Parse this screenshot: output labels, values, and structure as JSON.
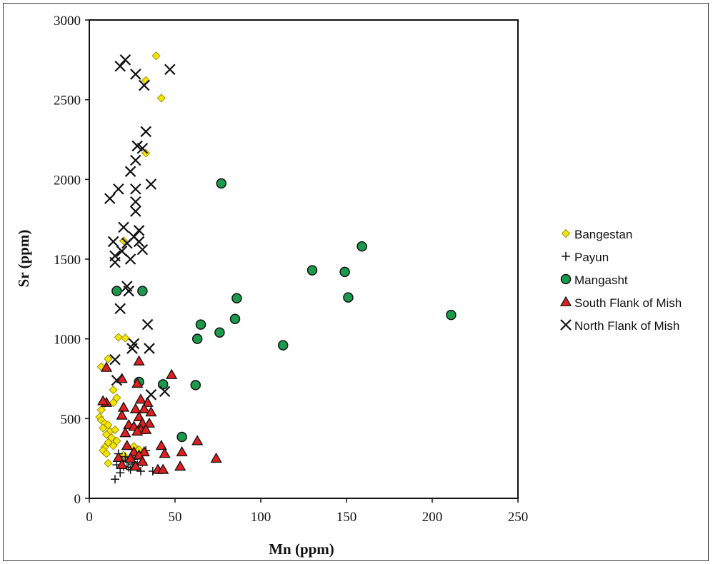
{
  "chart_data": {
    "type": "scatter",
    "xlabel": "Mn (ppm)",
    "ylabel": "Sr (ppm)",
    "xlim": [
      0,
      250
    ],
    "ylim": [
      0,
      3000
    ],
    "xticks": [
      "0",
      "50",
      "100",
      "150",
      "200",
      "250"
    ],
    "yticks": [
      "0",
      "500",
      "1000",
      "1500",
      "2000",
      "2500",
      "3000"
    ],
    "grid": false,
    "legend_position": "right",
    "series": [
      {
        "name": "Bangestan",
        "marker": "diamond",
        "color": "#f2e600",
        "points": [
          [
            39,
            2775
          ],
          [
            33,
            2620
          ],
          [
            42,
            2510
          ],
          [
            33,
            2165
          ],
          [
            20,
            1615
          ],
          [
            17,
            1010
          ],
          [
            21,
            1005
          ],
          [
            11,
            875
          ],
          [
            7,
            825
          ],
          [
            14,
            680
          ],
          [
            16,
            630
          ],
          [
            14,
            600
          ],
          [
            9,
            595
          ],
          [
            7,
            555
          ],
          [
            6,
            510
          ],
          [
            7,
            490
          ],
          [
            9,
            470
          ],
          [
            11,
            460
          ],
          [
            8,
            440
          ],
          [
            12,
            420
          ],
          [
            15,
            430
          ],
          [
            10,
            400
          ],
          [
            13,
            380
          ],
          [
            16,
            360
          ],
          [
            11,
            350
          ],
          [
            14,
            330
          ],
          [
            9,
            320
          ],
          [
            8,
            300
          ],
          [
            10,
            280
          ],
          [
            20,
            270
          ],
          [
            26,
            325
          ],
          [
            29,
            305
          ],
          [
            32,
            290
          ],
          [
            11,
            220
          ]
        ]
      },
      {
        "name": "Payun",
        "marker": "plus",
        "color": "#111111",
        "points": [
          [
            15,
            120
          ],
          [
            18,
            160
          ],
          [
            20,
            200
          ],
          [
            22,
            230
          ],
          [
            24,
            180
          ],
          [
            21,
            260
          ],
          [
            17,
            280
          ],
          [
            25,
            215
          ],
          [
            19,
            240
          ],
          [
            28,
            210
          ],
          [
            30,
            170
          ],
          [
            37,
            170
          ],
          [
            23,
            195
          ],
          [
            26,
            245
          ],
          [
            31,
            225
          ],
          [
            16,
            210
          ],
          [
            27,
            280
          ],
          [
            33,
            300
          ]
        ]
      },
      {
        "name": "Mangasht",
        "marker": "circle",
        "color": "#1a9a4a",
        "points": [
          [
            77,
            1975
          ],
          [
            159,
            1580
          ],
          [
            130,
            1430
          ],
          [
            149,
            1420
          ],
          [
            16,
            1300
          ],
          [
            31,
            1300
          ],
          [
            86,
            1255
          ],
          [
            151,
            1260
          ],
          [
            85,
            1125
          ],
          [
            65,
            1090
          ],
          [
            211,
            1150
          ],
          [
            76,
            1040
          ],
          [
            63,
            1000
          ],
          [
            113,
            960
          ],
          [
            43,
            715
          ],
          [
            62,
            710
          ],
          [
            54,
            385
          ],
          [
            29,
            730
          ]
        ]
      },
      {
        "name": "South Flank of Mish",
        "marker": "triangle",
        "color": "#e02020",
        "points": [
          [
            10,
            820
          ],
          [
            48,
            775
          ],
          [
            19,
            750
          ],
          [
            29,
            860
          ],
          [
            28,
            720
          ],
          [
            10,
            600
          ],
          [
            8,
            610
          ],
          [
            30,
            620
          ],
          [
            34,
            600
          ],
          [
            27,
            560
          ],
          [
            20,
            570
          ],
          [
            32,
            560
          ],
          [
            36,
            540
          ],
          [
            19,
            520
          ],
          [
            29,
            510
          ],
          [
            31,
            470
          ],
          [
            35,
            470
          ],
          [
            23,
            460
          ],
          [
            26,
            450
          ],
          [
            30,
            430
          ],
          [
            33,
            430
          ],
          [
            21,
            410
          ],
          [
            28,
            420
          ],
          [
            22,
            330
          ],
          [
            42,
            330
          ],
          [
            54,
            290
          ],
          [
            44,
            280
          ],
          [
            63,
            360
          ],
          [
            32,
            290
          ],
          [
            26,
            290
          ],
          [
            29,
            270
          ],
          [
            17,
            255
          ],
          [
            24,
            250
          ],
          [
            31,
            230
          ],
          [
            19,
            210
          ],
          [
            27,
            200
          ],
          [
            53,
            200
          ],
          [
            40,
            180
          ],
          [
            43,
            180
          ],
          [
            74,
            250
          ]
        ]
      },
      {
        "name": "North Flank of Mish",
        "marker": "x",
        "color": "#111111",
        "points": [
          [
            21,
            2750
          ],
          [
            18,
            2710
          ],
          [
            27,
            2660
          ],
          [
            47,
            2690
          ],
          [
            32,
            2590
          ],
          [
            33,
            2300
          ],
          [
            28,
            2210
          ],
          [
            31,
            2195
          ],
          [
            27,
            2120
          ],
          [
            24,
            2050
          ],
          [
            36,
            1970
          ],
          [
            17,
            1940
          ],
          [
            27,
            1940
          ],
          [
            12,
            1880
          ],
          [
            27,
            1860
          ],
          [
            27,
            1800
          ],
          [
            20,
            1700
          ],
          [
            29,
            1680
          ],
          [
            14,
            1610
          ],
          [
            26,
            1640
          ],
          [
            22,
            1600
          ],
          [
            29,
            1610
          ],
          [
            19,
            1550
          ],
          [
            31,
            1560
          ],
          [
            15,
            1520
          ],
          [
            24,
            1500
          ],
          [
            15,
            1480
          ],
          [
            22,
            1330
          ],
          [
            23,
            1300
          ],
          [
            18,
            1190
          ],
          [
            34,
            1090
          ],
          [
            26,
            970
          ],
          [
            25,
            940
          ],
          [
            35,
            940
          ],
          [
            15,
            870
          ],
          [
            16,
            740
          ],
          [
            44,
            670
          ],
          [
            36,
            650
          ]
        ]
      }
    ]
  }
}
